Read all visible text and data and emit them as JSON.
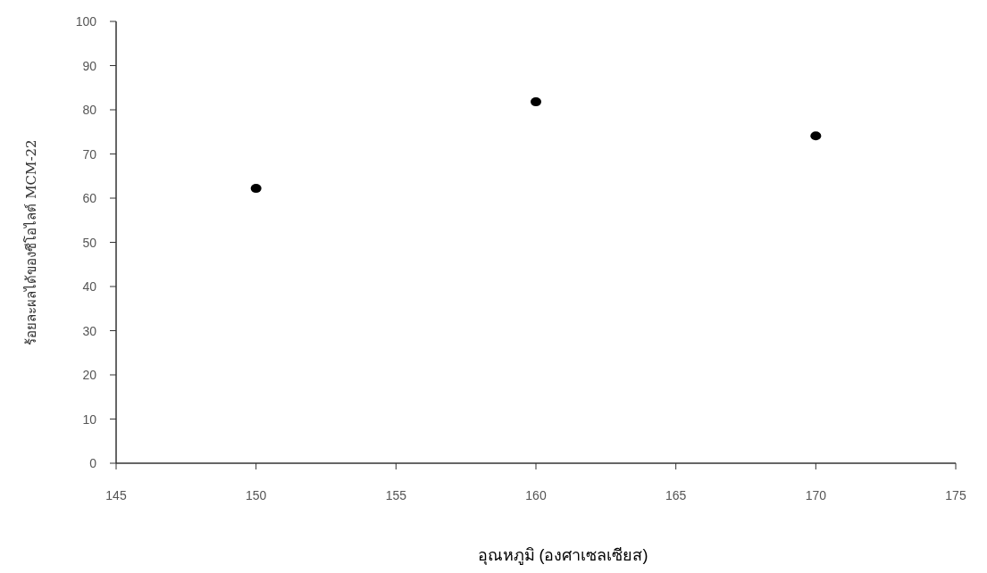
{
  "chart_data": {
    "type": "scatter",
    "xlabel": "อุณหภูมิ (องศาเซลเซียส)",
    "ylabel": "ร้อยละผลได้ของซีโอไลต์ MCM-22",
    "x": [
      150,
      160,
      170
    ],
    "series": [
      {
        "color": "#000000",
        "values": [
          62.2,
          81.8,
          74.1
        ]
      }
    ],
    "xlim": [
      145,
      175
    ],
    "xticks": [
      145,
      150,
      155,
      160,
      165,
      170,
      175
    ],
    "ylim": [
      0,
      100
    ],
    "yticks": [
      0,
      10,
      20,
      30,
      40,
      50,
      60,
      70,
      80,
      90,
      100
    ],
    "marker": "circle",
    "grid": false
  }
}
